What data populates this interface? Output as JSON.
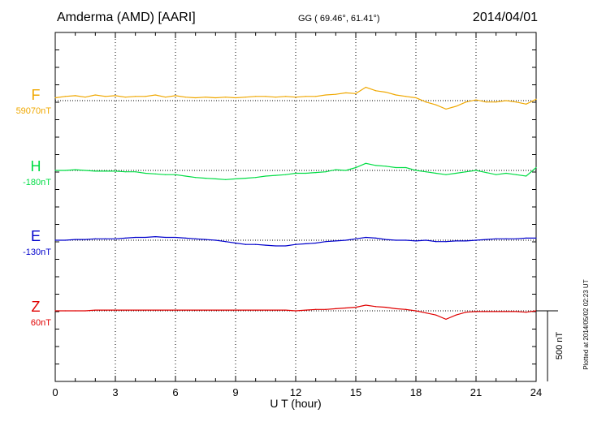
{
  "header": {
    "station": "Amderma (AMD)  [AARI]",
    "coords": "GG ( 69.46°,  61.41°)",
    "date": "2014/04/01"
  },
  "xaxis": {
    "label": "U T (hour)",
    "ticks": [
      "0",
      "3",
      "6",
      "9",
      "12",
      "15",
      "18",
      "21",
      "24"
    ]
  },
  "scale_bar": {
    "label": "500 nT",
    "nT": 500
  },
  "plotted_note": "Plotted at 2014/05/02 02:23 UT",
  "chart_data": {
    "type": "line",
    "x_label": "U T (hour)",
    "x_range": [
      0,
      24
    ],
    "x": [
      0,
      0.5,
      1,
      1.5,
      2,
      2.5,
      3,
      3.5,
      4,
      4.5,
      5,
      5.5,
      6,
      6.5,
      7,
      7.5,
      8,
      8.5,
      9,
      9.5,
      10,
      10.5,
      11,
      11.5,
      12,
      12.5,
      13,
      13.5,
      14,
      14.5,
      15,
      15.5,
      16,
      16.5,
      17,
      17.5,
      18,
      18.5,
      19,
      19.5,
      20,
      20.5,
      21,
      21.5,
      22,
      22.5,
      23,
      23.5,
      24
    ],
    "units": "nT",
    "scale": "500 nT per scale bar",
    "series": [
      {
        "name": "F",
        "baseline": "59070nT",
        "color": "#f0a800",
        "values": [
          20,
          30,
          35,
          25,
          40,
          30,
          35,
          25,
          30,
          30,
          40,
          25,
          35,
          25,
          20,
          25,
          20,
          25,
          20,
          25,
          30,
          30,
          25,
          30,
          25,
          30,
          30,
          40,
          45,
          55,
          50,
          95,
          70,
          60,
          40,
          30,
          20,
          -10,
          -30,
          -60,
          -40,
          -10,
          5,
          -10,
          -10,
          0,
          -10,
          -25,
          10
        ]
      },
      {
        "name": "H",
        "baseline": "-180nT",
        "color": "#00dd44",
        "values": [
          0,
          0,
          5,
          0,
          -5,
          -5,
          -5,
          -10,
          -10,
          -20,
          -25,
          -30,
          -30,
          -40,
          -50,
          -55,
          -60,
          -65,
          -60,
          -55,
          -50,
          -40,
          -35,
          -30,
          -20,
          -20,
          -15,
          -10,
          5,
          0,
          20,
          50,
          35,
          30,
          20,
          20,
          0,
          -10,
          -20,
          -30,
          -20,
          -10,
          0,
          -15,
          -30,
          -20,
          -30,
          -40,
          20
        ]
      },
      {
        "name": "E",
        "baseline": "-130nT",
        "color": "#0000cc",
        "values": [
          0,
          0,
          5,
          5,
          10,
          10,
          10,
          15,
          20,
          20,
          25,
          20,
          20,
          15,
          10,
          5,
          0,
          -10,
          -20,
          -30,
          -30,
          -35,
          -40,
          -40,
          -30,
          -25,
          -20,
          -10,
          -5,
          0,
          10,
          20,
          15,
          5,
          0,
          0,
          -5,
          0,
          -10,
          -10,
          -5,
          -5,
          0,
          5,
          10,
          10,
          10,
          15,
          15
        ]
      },
      {
        "name": "Z",
        "baseline": "60nT",
        "color": "#e00000",
        "values": [
          0,
          0,
          0,
          0,
          5,
          5,
          5,
          5,
          5,
          5,
          5,
          5,
          5,
          5,
          5,
          5,
          5,
          5,
          5,
          5,
          5,
          5,
          5,
          5,
          0,
          5,
          10,
          10,
          15,
          20,
          25,
          40,
          30,
          25,
          15,
          10,
          0,
          -15,
          -30,
          -60,
          -30,
          -10,
          -5,
          -5,
          -5,
          -5,
          -5,
          -10,
          0
        ]
      }
    ]
  }
}
